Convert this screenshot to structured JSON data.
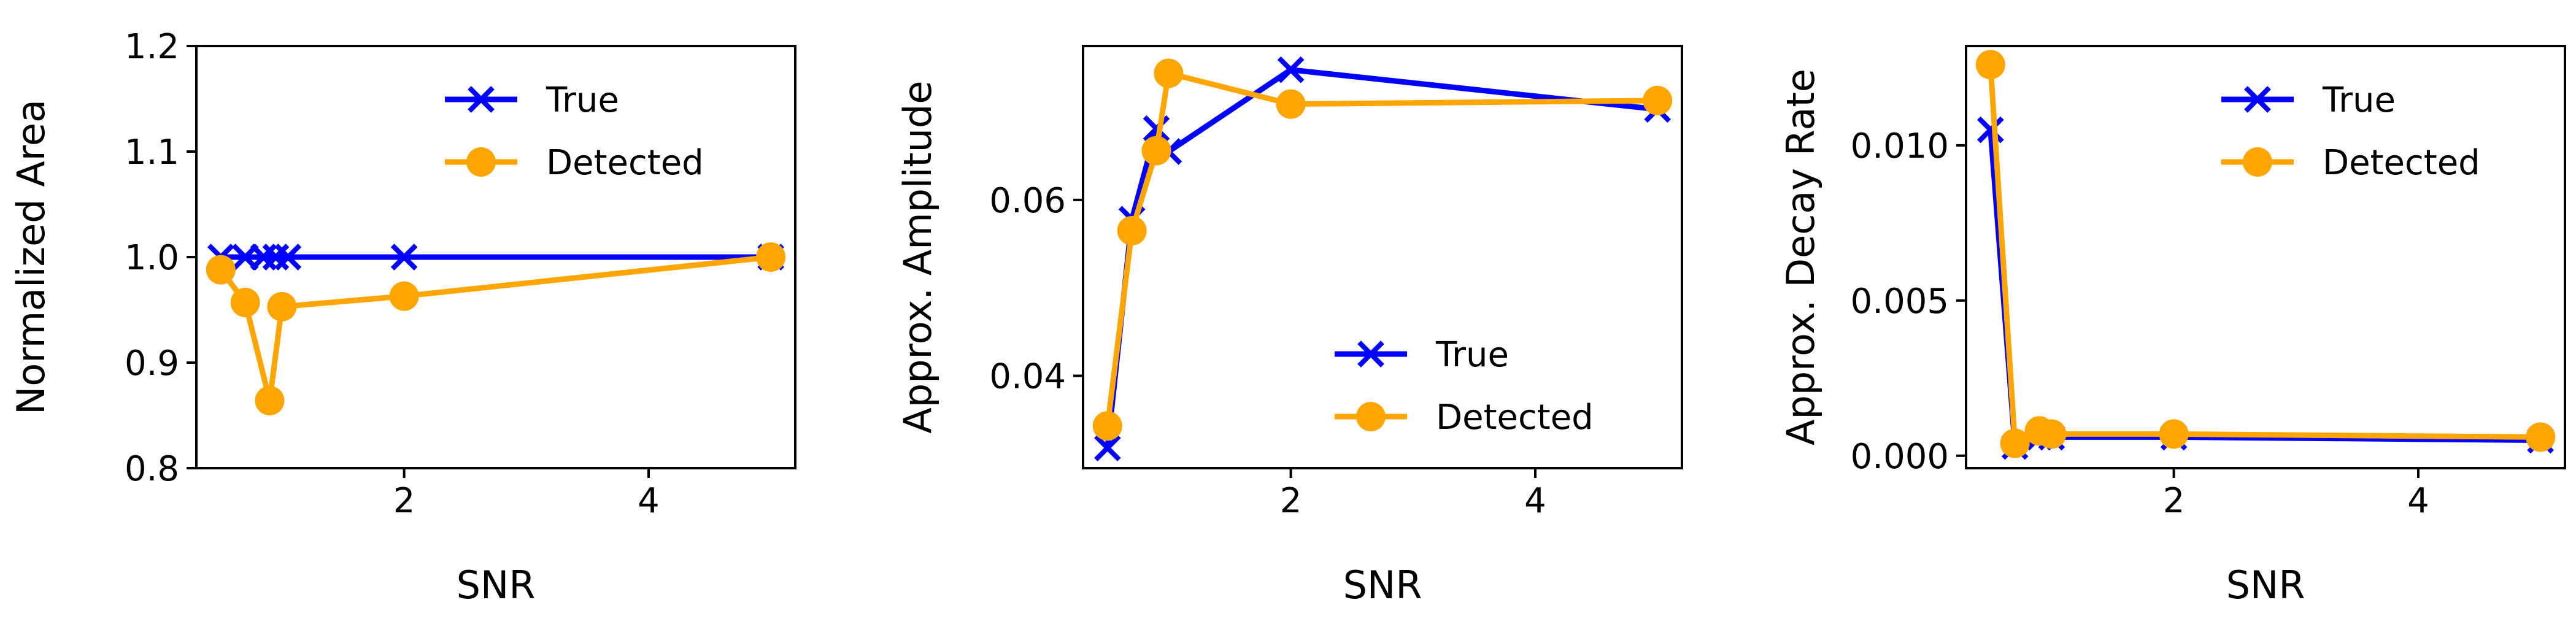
{
  "colors": {
    "true": "#0000ff",
    "detected": "#ffa500"
  },
  "markers": {
    "true": "x-marker",
    "detected": "circle-marker"
  },
  "chart_data": [
    {
      "type": "line",
      "title": "",
      "xlabel": "SNR",
      "ylabel": "Normalized Area",
      "xlim": [
        0.3,
        5.2
      ],
      "ylim": [
        0.8,
        1.2
      ],
      "xticks": [
        2,
        4
      ],
      "xtick_labels": [
        "2",
        "4"
      ],
      "yticks": [
        0.8,
        0.9,
        1.0,
        1.1,
        1.2
      ],
      "ytick_labels": [
        "0.8",
        "0.9",
        "1.0",
        "1.1",
        "1.2"
      ],
      "grid": false,
      "legend": "upper-right",
      "series": [
        {
          "name": "True",
          "x": [
            0.5,
            0.7,
            0.85,
            0.95,
            1.05,
            2,
            5
          ],
          "y": [
            1.0,
            1.0,
            1.0,
            1.0,
            1.0,
            1.0,
            1.0
          ]
        },
        {
          "name": "Detected",
          "x": [
            0.5,
            0.7,
            0.9,
            1.0,
            2,
            5
          ],
          "y": [
            0.988,
            0.957,
            0.864,
            0.953,
            0.963,
            1.0
          ]
        }
      ]
    },
    {
      "type": "line",
      "title": "",
      "xlabel": "SNR",
      "ylabel": "Approx. Amplitude",
      "xlim": [
        0.3,
        5.2
      ],
      "ylim": [
        0.0295,
        0.0775
      ],
      "xticks": [
        2,
        4
      ],
      "xtick_labels": [
        "2",
        "4"
      ],
      "yticks": [
        0.04,
        0.06
      ],
      "ytick_labels": [
        "0.04",
        "0.06"
      ],
      "grid": false,
      "legend": "lower-right",
      "series": [
        {
          "name": "True",
          "x": [
            0.5,
            0.7,
            0.9,
            1.0,
            2,
            5
          ],
          "y": [
            0.0318,
            0.0578,
            0.0681,
            0.0655,
            0.0748,
            0.0703
          ]
        },
        {
          "name": "Detected",
          "x": [
            0.5,
            0.7,
            0.9,
            1.0,
            2,
            5
          ],
          "y": [
            0.0343,
            0.0565,
            0.0656,
            0.0744,
            0.0709,
            0.0713
          ]
        }
      ]
    },
    {
      "type": "line",
      "title": "",
      "xlabel": "SNR",
      "ylabel": "Approx. Decay Rate",
      "xlim": [
        0.3,
        5.2
      ],
      "ylim": [
        -0.0004,
        0.0132
      ],
      "xticks": [
        2,
        4
      ],
      "xtick_labels": [
        "2",
        "4"
      ],
      "yticks": [
        0.0,
        0.005,
        0.01
      ],
      "ytick_labels": [
        "0.000",
        "0.005",
        "0.010"
      ],
      "grid": false,
      "legend": "upper-right",
      "series": [
        {
          "name": "True",
          "x": [
            0.5,
            0.7,
            0.9,
            1.0,
            2,
            5
          ],
          "y": [
            0.0105,
            0.0003,
            0.0006,
            0.0006,
            0.0006,
            0.0005
          ]
        },
        {
          "name": "Detected",
          "x": [
            0.5,
            0.7,
            0.9,
            1.0,
            2,
            5
          ],
          "y": [
            0.0126,
            0.0004,
            0.0008,
            0.0007,
            0.0007,
            0.0006
          ]
        }
      ]
    }
  ]
}
